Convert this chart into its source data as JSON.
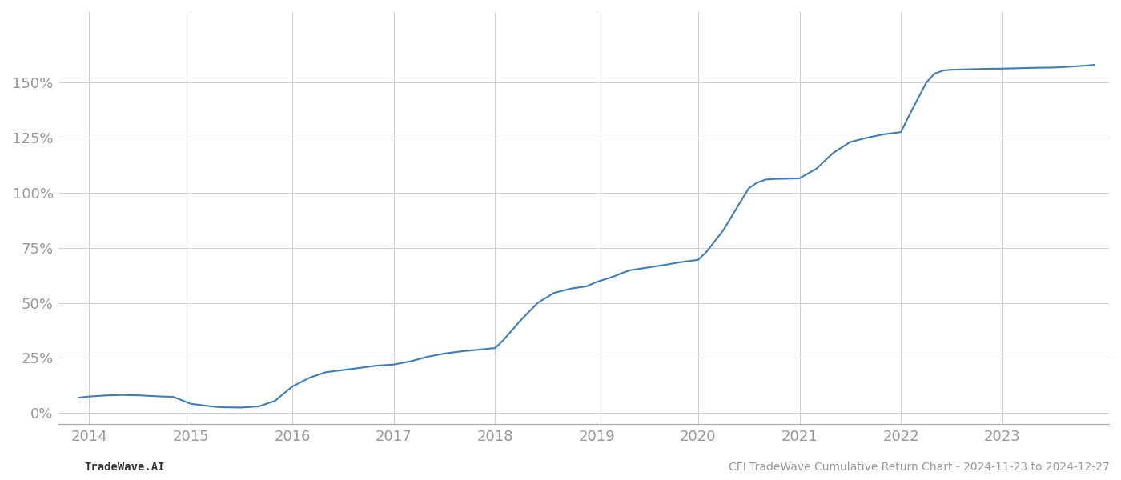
{
  "x_values": [
    2013.9,
    2014.0,
    2014.17,
    2014.33,
    2014.5,
    2014.67,
    2014.83,
    2015.0,
    2015.17,
    2015.25,
    2015.33,
    2015.5,
    2015.67,
    2015.83,
    2016.0,
    2016.17,
    2016.33,
    2016.5,
    2016.67,
    2016.83,
    2017.0,
    2017.17,
    2017.33,
    2017.5,
    2017.67,
    2017.83,
    2018.0,
    2018.08,
    2018.25,
    2018.42,
    2018.58,
    2018.75,
    2018.9,
    2019.0,
    2019.17,
    2019.25,
    2019.33,
    2019.5,
    2019.67,
    2019.83,
    2020.0,
    2020.08,
    2020.25,
    2020.42,
    2020.5,
    2020.58,
    2020.67,
    2020.75,
    2020.83,
    2021.0,
    2021.17,
    2021.33,
    2021.5,
    2021.67,
    2021.83,
    2022.0,
    2022.08,
    2022.17,
    2022.25,
    2022.33,
    2022.42,
    2022.5,
    2022.67,
    2022.83,
    2023.0,
    2023.17,
    2023.33,
    2023.5,
    2023.67,
    2023.83,
    2023.9
  ],
  "y_values": [
    0.07,
    0.075,
    0.08,
    0.082,
    0.08,
    0.076,
    0.073,
    0.042,
    0.032,
    0.028,
    0.026,
    0.025,
    0.03,
    0.055,
    0.12,
    0.16,
    0.185,
    0.195,
    0.205,
    0.215,
    0.22,
    0.235,
    0.255,
    0.27,
    0.28,
    0.287,
    0.295,
    0.33,
    0.42,
    0.5,
    0.545,
    0.565,
    0.575,
    0.595,
    0.62,
    0.635,
    0.648,
    0.66,
    0.672,
    0.685,
    0.695,
    0.73,
    0.83,
    0.96,
    1.02,
    1.045,
    1.06,
    1.062,
    1.063,
    1.065,
    1.11,
    1.18,
    1.23,
    1.25,
    1.265,
    1.275,
    1.35,
    1.43,
    1.5,
    1.54,
    1.555,
    1.558,
    1.56,
    1.562,
    1.563,
    1.565,
    1.567,
    1.568,
    1.572,
    1.577,
    1.58
  ],
  "line_color": "#3a7ebf",
  "line_width": 1.5,
  "background_color": "#ffffff",
  "grid_color": "#d0d0d0",
  "tick_color": "#999999",
  "x_tick_labels": [
    "2014",
    "2015",
    "2016",
    "2017",
    "2018",
    "2019",
    "2020",
    "2021",
    "2022",
    "2023"
  ],
  "x_tick_positions": [
    2014,
    2015,
    2016,
    2017,
    2018,
    2019,
    2020,
    2021,
    2022,
    2023
  ],
  "y_tick_positions": [
    0.0,
    0.25,
    0.5,
    0.75,
    1.0,
    1.25,
    1.5
  ],
  "y_tick_labels": [
    "0%",
    "25%",
    "50%",
    "75%",
    "100%",
    "125%",
    "150%"
  ],
  "ylim": [
    -0.05,
    1.82
  ],
  "xlim": [
    2013.7,
    2024.05
  ],
  "footer_left": "TradeWave.AI",
  "footer_right": "CFI TradeWave Cumulative Return Chart - 2024-11-23 to 2024-12-27",
  "footer_fontsize": 10,
  "tick_fontsize": 13,
  "spine_color": "#aaaaaa"
}
